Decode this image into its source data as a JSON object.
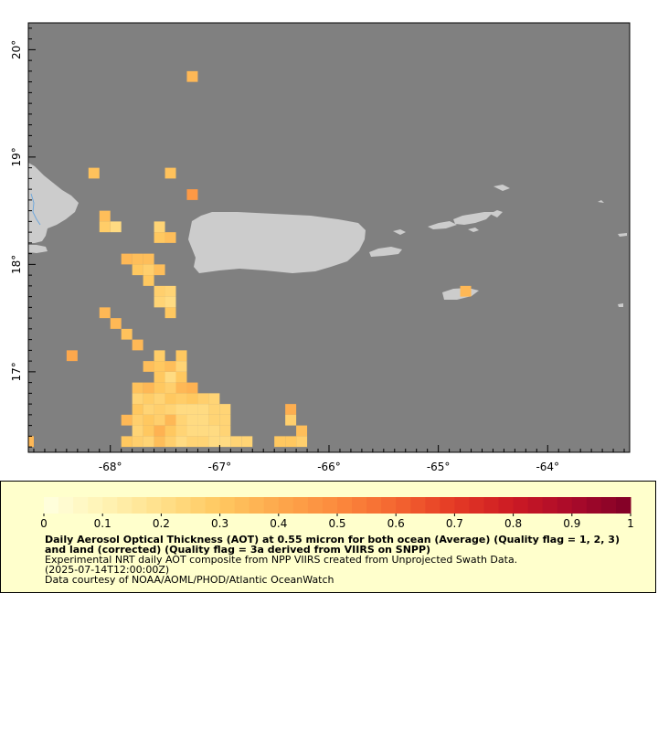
{
  "map": {
    "lon_range": [
      -68.75,
      -63.25
    ],
    "lat_range": [
      16.25,
      20.25
    ],
    "background_color": "#808080",
    "land_color": "#cccccc",
    "x_ticks": [
      -68,
      -67,
      -66,
      -65,
      -64
    ],
    "x_tick_labels": [
      "-68°",
      "-67°",
      "-66°",
      "-65°",
      "-64°"
    ],
    "y_ticks": [
      17,
      18,
      19,
      20
    ],
    "y_tick_labels": [
      "17°",
      "18°",
      "19°",
      "20°"
    ],
    "land_areas": [
      "hispaniola-east",
      "puerto-rico",
      "vieques",
      "culebra",
      "virgin-islands",
      "st-croix"
    ]
  },
  "chart_data": {
    "type": "heatmap",
    "variable": "Daily Aerosol Optical Thickness (AOT) at 0.55 micron",
    "grid_resolution_deg": 0.1,
    "cells": [
      {
        "lon": -67.25,
        "lat": 19.75,
        "aot": 0.35
      },
      {
        "lon": -68.15,
        "lat": 18.85,
        "aot": 0.32
      },
      {
        "lon": -67.45,
        "lat": 18.85,
        "aot": 0.32
      },
      {
        "lon": -67.25,
        "lat": 18.65,
        "aot": 0.45
      },
      {
        "lon": -68.05,
        "lat": 18.45,
        "aot": 0.33
      },
      {
        "lon": -68.05,
        "lat": 18.35,
        "aot": 0.28
      },
      {
        "lon": -67.95,
        "lat": 18.35,
        "aot": 0.22
      },
      {
        "lon": -67.55,
        "lat": 18.35,
        "aot": 0.25
      },
      {
        "lon": -67.55,
        "lat": 18.25,
        "aot": 0.3
      },
      {
        "lon": -67.45,
        "lat": 18.25,
        "aot": 0.33
      },
      {
        "lon": -67.85,
        "lat": 18.05,
        "aot": 0.35
      },
      {
        "lon": -67.75,
        "lat": 18.05,
        "aot": 0.33
      },
      {
        "lon": -67.65,
        "lat": 18.05,
        "aot": 0.33
      },
      {
        "lon": -67.75,
        "lat": 17.95,
        "aot": 0.3
      },
      {
        "lon": -67.65,
        "lat": 17.95,
        "aot": 0.27
      },
      {
        "lon": -67.55,
        "lat": 17.95,
        "aot": 0.33
      },
      {
        "lon": -67.65,
        "lat": 17.85,
        "aot": 0.3
      },
      {
        "lon": -67.55,
        "lat": 17.75,
        "aot": 0.27
      },
      {
        "lon": -67.45,
        "lat": 17.75,
        "aot": 0.25
      },
      {
        "lon": -67.55,
        "lat": 17.65,
        "aot": 0.25
      },
      {
        "lon": -67.45,
        "lat": 17.65,
        "aot": 0.22
      },
      {
        "lon": -67.45,
        "lat": 17.55,
        "aot": 0.3
      },
      {
        "lon": -68.05,
        "lat": 17.55,
        "aot": 0.35
      },
      {
        "lon": -67.95,
        "lat": 17.45,
        "aot": 0.35
      },
      {
        "lon": -67.85,
        "lat": 17.35,
        "aot": 0.32
      },
      {
        "lon": -67.75,
        "lat": 17.25,
        "aot": 0.35
      },
      {
        "lon": -68.35,
        "lat": 17.15,
        "aot": 0.4
      },
      {
        "lon": -67.55,
        "lat": 17.15,
        "aot": 0.28
      },
      {
        "lon": -67.35,
        "lat": 17.15,
        "aot": 0.3
      },
      {
        "lon": -67.65,
        "lat": 17.05,
        "aot": 0.33
      },
      {
        "lon": -67.55,
        "lat": 17.05,
        "aot": 0.3
      },
      {
        "lon": -67.45,
        "lat": 17.05,
        "aot": 0.33
      },
      {
        "lon": -67.35,
        "lat": 17.05,
        "aot": 0.25
      },
      {
        "lon": -67.55,
        "lat": 16.95,
        "aot": 0.3
      },
      {
        "lon": -67.45,
        "lat": 16.95,
        "aot": 0.22
      },
      {
        "lon": -67.35,
        "lat": 16.95,
        "aot": 0.3
      },
      {
        "lon": -67.75,
        "lat": 16.85,
        "aot": 0.32
      },
      {
        "lon": -67.65,
        "lat": 16.85,
        "aot": 0.35
      },
      {
        "lon": -67.55,
        "lat": 16.85,
        "aot": 0.3
      },
      {
        "lon": -67.45,
        "lat": 16.85,
        "aot": 0.27
      },
      {
        "lon": -67.35,
        "lat": 16.85,
        "aot": 0.35
      },
      {
        "lon": -67.25,
        "lat": 16.85,
        "aot": 0.37
      },
      {
        "lon": -67.75,
        "lat": 16.75,
        "aot": 0.25
      },
      {
        "lon": -67.65,
        "lat": 16.75,
        "aot": 0.28
      },
      {
        "lon": -67.55,
        "lat": 16.75,
        "aot": 0.25
      },
      {
        "lon": -67.45,
        "lat": 16.75,
        "aot": 0.3
      },
      {
        "lon": -67.35,
        "lat": 16.75,
        "aot": 0.28
      },
      {
        "lon": -67.25,
        "lat": 16.75,
        "aot": 0.3
      },
      {
        "lon": -67.15,
        "lat": 16.75,
        "aot": 0.27
      },
      {
        "lon": -67.05,
        "lat": 16.75,
        "aot": 0.25
      },
      {
        "lon": -67.75,
        "lat": 16.65,
        "aot": 0.3
      },
      {
        "lon": -67.65,
        "lat": 16.65,
        "aot": 0.25
      },
      {
        "lon": -67.55,
        "lat": 16.65,
        "aot": 0.27
      },
      {
        "lon": -67.45,
        "lat": 16.65,
        "aot": 0.25
      },
      {
        "lon": -67.35,
        "lat": 16.65,
        "aot": 0.22
      },
      {
        "lon": -67.25,
        "lat": 16.65,
        "aot": 0.22
      },
      {
        "lon": -67.15,
        "lat": 16.65,
        "aot": 0.22
      },
      {
        "lon": -67.05,
        "lat": 16.65,
        "aot": 0.25
      },
      {
        "lon": -66.95,
        "lat": 16.65,
        "aot": 0.25
      },
      {
        "lon": -67.85,
        "lat": 16.55,
        "aot": 0.35
      },
      {
        "lon": -67.75,
        "lat": 16.55,
        "aot": 0.27
      },
      {
        "lon": -67.65,
        "lat": 16.55,
        "aot": 0.3
      },
      {
        "lon": -67.55,
        "lat": 16.55,
        "aot": 0.27
      },
      {
        "lon": -67.45,
        "lat": 16.55,
        "aot": 0.35
      },
      {
        "lon": -67.35,
        "lat": 16.55,
        "aot": 0.25
      },
      {
        "lon": -67.25,
        "lat": 16.55,
        "aot": 0.22
      },
      {
        "lon": -67.15,
        "lat": 16.55,
        "aot": 0.22
      },
      {
        "lon": -67.05,
        "lat": 16.55,
        "aot": 0.25
      },
      {
        "lon": -66.95,
        "lat": 16.55,
        "aot": 0.25
      },
      {
        "lon": -66.35,
        "lat": 16.65,
        "aot": 0.38
      },
      {
        "lon": -66.35,
        "lat": 16.55,
        "aot": 0.27
      },
      {
        "lon": -67.75,
        "lat": 16.45,
        "aot": 0.25
      },
      {
        "lon": -67.65,
        "lat": 16.45,
        "aot": 0.3
      },
      {
        "lon": -67.55,
        "lat": 16.45,
        "aot": 0.37
      },
      {
        "lon": -67.45,
        "lat": 16.45,
        "aot": 0.3
      },
      {
        "lon": -67.35,
        "lat": 16.45,
        "aot": 0.25
      },
      {
        "lon": -67.25,
        "lat": 16.45,
        "aot": 0.22
      },
      {
        "lon": -67.15,
        "lat": 16.45,
        "aot": 0.22
      },
      {
        "lon": -67.05,
        "lat": 16.45,
        "aot": 0.22
      },
      {
        "lon": -66.95,
        "lat": 16.45,
        "aot": 0.25
      },
      {
        "lon": -66.25,
        "lat": 16.45,
        "aot": 0.33
      },
      {
        "lon": -67.85,
        "lat": 16.35,
        "aot": 0.3
      },
      {
        "lon": -67.75,
        "lat": 16.35,
        "aot": 0.27
      },
      {
        "lon": -67.65,
        "lat": 16.35,
        "aot": 0.25
      },
      {
        "lon": -67.55,
        "lat": 16.35,
        "aot": 0.33
      },
      {
        "lon": -67.45,
        "lat": 16.35,
        "aot": 0.27
      },
      {
        "lon": -67.35,
        "lat": 16.35,
        "aot": 0.22
      },
      {
        "lon": -67.25,
        "lat": 16.35,
        "aot": 0.25
      },
      {
        "lon": -67.15,
        "lat": 16.35,
        "aot": 0.25
      },
      {
        "lon": -67.05,
        "lat": 16.35,
        "aot": 0.22
      },
      {
        "lon": -66.95,
        "lat": 16.35,
        "aot": 0.22
      },
      {
        "lon": -66.85,
        "lat": 16.35,
        "aot": 0.25
      },
      {
        "lon": -66.75,
        "lat": 16.35,
        "aot": 0.25
      },
      {
        "lon": -66.45,
        "lat": 16.35,
        "aot": 0.3
      },
      {
        "lon": -66.35,
        "lat": 16.35,
        "aot": 0.3
      },
      {
        "lon": -66.25,
        "lat": 16.35,
        "aot": 0.27
      },
      {
        "lon": -68.75,
        "lat": 16.35,
        "aot": 0.35
      },
      {
        "lon": -64.75,
        "lat": 17.75,
        "aot": 0.35
      }
    ]
  },
  "colorbar": {
    "range": [
      0,
      1
    ],
    "tick_labels": [
      "0",
      "0.1",
      "0.2",
      "0.3",
      "0.4",
      "0.5",
      "0.6",
      "0.7",
      "0.8",
      "0.9",
      "1"
    ],
    "palette": [
      "#ffffe0",
      "#fff3b5",
      "#ffe08a",
      "#ffc860",
      "#fda84c",
      "#fc8a3d",
      "#f46530",
      "#e43a25",
      "#cc1a24",
      "#aa0a2a",
      "#800026"
    ]
  },
  "legend": {
    "title": "Daily Aerosol Optical Thickness (AOT) at 0.55 micron for both ocean (Average) (Quality flag = 1, 2, 3) and land (corrected) (Quality flag = 3a derived from VIIRS on SNPP)",
    "note1": "Experimental NRT daily AOT composite from NPP VIIRS created from Unprojected Swath Data.",
    "note2": "(2025-07-14T12:00:00Z)",
    "credit": "Data courtesy of NOAA/AOML/PHOD/Atlantic OceanWatch"
  }
}
